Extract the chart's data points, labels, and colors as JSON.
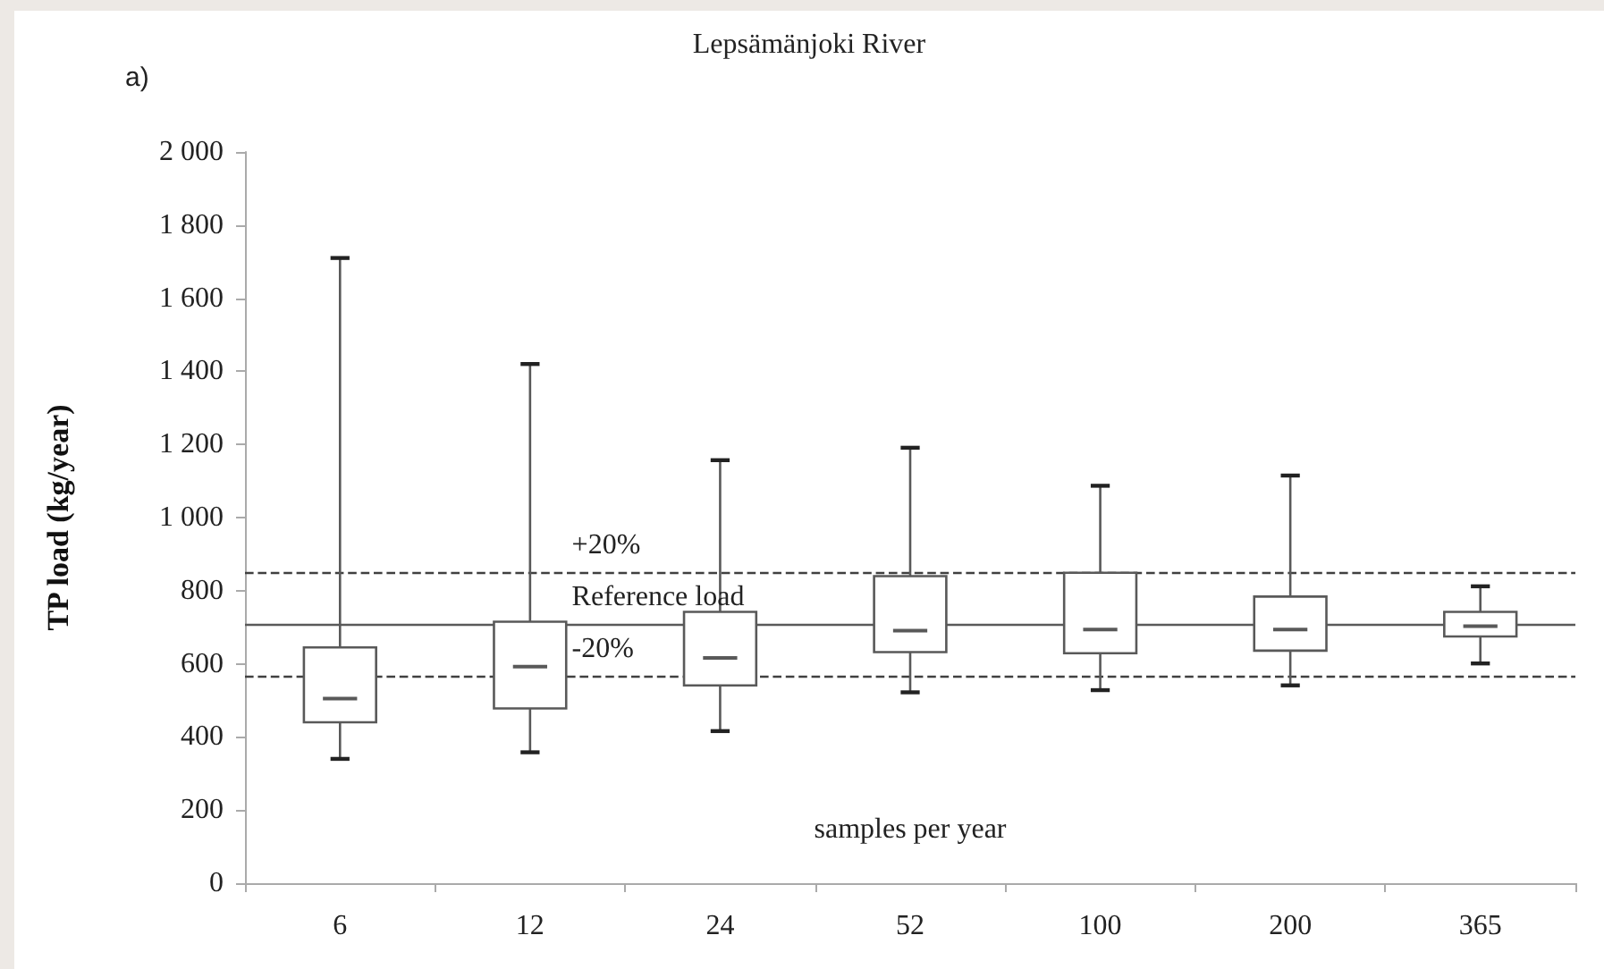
{
  "chart_data": {
    "type": "box",
    "title": "Lepsämänjoki River",
    "xlabel": "samples per year",
    "ylabel": "TP load (kg/year)",
    "annotations": [
      "a)",
      {
        "text": "+20%",
        "y": 852
      },
      {
        "text": "-20%",
        "y": 568
      }
    ],
    "categories": [
      "6",
      "12",
      "24",
      "52",
      "100",
      "200",
      "365"
    ],
    "boxes": [
      {
        "low": 340,
        "q1": 440,
        "median": 505,
        "q3": 645,
        "high": 1710
      },
      {
        "low": 358,
        "q1": 478,
        "median": 592,
        "q3": 715,
        "high": 1420
      },
      {
        "low": 416,
        "q1": 541,
        "median": 616,
        "q3": 742,
        "high": 1157
      },
      {
        "low": 522,
        "q1": 632,
        "median": 691,
        "q3": 840,
        "high": 1191
      },
      {
        "low": 528,
        "q1": 629,
        "median": 694,
        "q3": 849,
        "high": 1087
      },
      {
        "low": 541,
        "q1": 636,
        "median": 694,
        "q3": 784,
        "high": 1115
      },
      {
        "low": 601,
        "q1": 675,
        "median": 703,
        "q3": 742,
        "high": 812
      }
    ],
    "color": "#595959",
    "ylim": [
      0,
      2000
    ],
    "yticks": [
      0,
      200,
      400,
      600,
      800,
      {
        "value": 1000,
        "label": "1 000"
      },
      {
        "value": 1200,
        "label": "1 200"
      },
      {
        "value": 1400,
        "label": "1 400"
      },
      {
        "value": 1600,
        "label": "1 600"
      },
      {
        "value": 1800,
        "label": "1 800"
      },
      {
        "value": 2000,
        "label": "2 000"
      }
    ],
    "ref_lines": [
      {
        "axis": "y",
        "value": 852,
        "line_style": "dashed",
        "color": "#404040"
      },
      {
        "axis": "y",
        "value": 710,
        "label": "Reference load",
        "line_style": "solid",
        "color": "#595959"
      },
      {
        "axis": "y",
        "value": 568,
        "line_style": "dashed",
        "color": "#404040"
      }
    ],
    "grid": false
  }
}
